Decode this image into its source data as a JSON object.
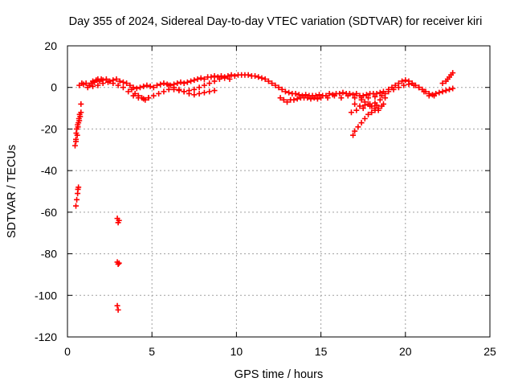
{
  "chart_data": {
    "type": "scatter",
    "title": "Day 355 of 2024, Sidereal Day-to-day VTEC variation (SDTVAR) for receiver kiri",
    "xlabel": "GPS time / hours",
    "ylabel": "SDTVAR / TECUs",
    "xlim": [
      0,
      25
    ],
    "ylim": [
      -120,
      20
    ],
    "xticks": [
      0,
      5,
      10,
      15,
      20,
      25
    ],
    "yticks": [
      -120,
      -100,
      -80,
      -60,
      -40,
      -20,
      0,
      20
    ],
    "grid": true,
    "marker": "+",
    "color": "#ff0000",
    "series": [
      {
        "points": [
          [
            0.45,
            -28
          ],
          [
            0.5,
            -25
          ],
          [
            0.52,
            -22
          ],
          [
            0.55,
            -20
          ],
          [
            0.6,
            -18
          ],
          [
            0.65,
            -17
          ],
          [
            0.7,
            -16
          ],
          [
            0.75,
            -14
          ],
          [
            0.8,
            -12
          ],
          [
            0.5,
            -26
          ],
          [
            0.58,
            -23
          ],
          [
            0.62,
            -19
          ],
          [
            0.68,
            -15
          ],
          [
            0.72,
            -13
          ],
          [
            0.5,
            -57
          ],
          [
            0.55,
            -54
          ],
          [
            0.6,
            -51
          ],
          [
            0.62,
            -49
          ],
          [
            0.65,
            -48
          ],
          [
            0.8,
            -8
          ],
          [
            0.7,
            1
          ],
          [
            0.85,
            2
          ],
          [
            0.95,
            1.5
          ],
          [
            1.1,
            2
          ],
          [
            1.3,
            1
          ],
          [
            1.4,
            2
          ],
          [
            1.5,
            3
          ],
          [
            1.6,
            2.5
          ],
          [
            1.7,
            3.5
          ],
          [
            1.8,
            4
          ],
          [
            1.9,
            3
          ],
          [
            2.0,
            4
          ],
          [
            2.1,
            3.5
          ],
          [
            2.3,
            4
          ],
          [
            2.5,
            3
          ],
          [
            2.7,
            3.5
          ],
          [
            2.9,
            4
          ],
          [
            3.1,
            3
          ],
          [
            3.3,
            2.5
          ],
          [
            3.5,
            2
          ],
          [
            3.7,
            1
          ],
          [
            3.9,
            0
          ],
          [
            4.1,
            -0.5
          ],
          [
            4.3,
            0
          ],
          [
            4.5,
            0.5
          ],
          [
            4.7,
            1
          ],
          [
            4.9,
            0.5
          ],
          [
            5.1,
            0
          ],
          [
            5.3,
            1
          ],
          [
            5.5,
            1.5
          ],
          [
            5.7,
            2
          ],
          [
            5.9,
            1.5
          ],
          [
            6.1,
            1
          ],
          [
            6.3,
            1.5
          ],
          [
            6.5,
            2
          ],
          [
            6.7,
            2.5
          ],
          [
            6.9,
            2
          ],
          [
            7.1,
            2.5
          ],
          [
            7.3,
            3
          ],
          [
            7.5,
            3.5
          ],
          [
            7.7,
            4
          ],
          [
            7.9,
            4.5
          ],
          [
            8.1,
            4
          ],
          [
            8.3,
            5
          ],
          [
            8.5,
            5
          ],
          [
            8.7,
            5.5
          ],
          [
            8.9,
            5
          ],
          [
            9.1,
            5.5
          ],
          [
            9.3,
            5
          ],
          [
            9.5,
            5.5
          ],
          [
            9.7,
            6
          ],
          [
            9.9,
            5.5
          ],
          [
            10.1,
            6
          ],
          [
            10.3,
            6
          ],
          [
            10.5,
            6
          ],
          [
            10.7,
            6
          ],
          [
            10.9,
            5.5
          ],
          [
            11.1,
            5.5
          ],
          [
            11.3,
            5
          ],
          [
            11.5,
            4.5
          ],
          [
            11.7,
            4
          ],
          [
            11.9,
            3
          ],
          [
            12.1,
            2
          ],
          [
            12.3,
            1
          ],
          [
            12.5,
            0
          ],
          [
            12.7,
            -1
          ],
          [
            12.9,
            -2
          ],
          [
            13.1,
            -2.5
          ],
          [
            13.3,
            -3
          ],
          [
            13.5,
            -3
          ],
          [
            13.7,
            -3.5
          ],
          [
            13.9,
            -4
          ],
          [
            14.1,
            -3.5
          ],
          [
            14.3,
            -4
          ],
          [
            14.5,
            -4
          ],
          [
            14.7,
            -4
          ],
          [
            14.9,
            -3.5
          ],
          [
            15.1,
            -4
          ],
          [
            15.3,
            -4
          ],
          [
            15.5,
            -3
          ],
          [
            15.7,
            -3.5
          ],
          [
            15.9,
            -3
          ],
          [
            16.1,
            -3
          ],
          [
            16.3,
            -2.5
          ],
          [
            16.5,
            -3
          ],
          [
            16.7,
            -3
          ],
          [
            16.9,
            -3.5
          ],
          [
            17.1,
            -3
          ],
          [
            17.3,
            -4
          ],
          [
            17.5,
            -4
          ],
          [
            17.7,
            -3.5
          ],
          [
            17.9,
            -3
          ],
          [
            18.1,
            -3
          ],
          [
            18.3,
            -3
          ],
          [
            18.5,
            -2.5
          ],
          [
            18.7,
            -2
          ],
          [
            1.2,
            0
          ],
          [
            1.5,
            0.5
          ],
          [
            1.8,
            1
          ],
          [
            2.1,
            2
          ],
          [
            2.4,
            2.5
          ],
          [
            2.7,
            2
          ],
          [
            3.0,
            1
          ],
          [
            3.3,
            0
          ],
          [
            3.6,
            -2
          ],
          [
            3.9,
            -4
          ],
          [
            4.2,
            -5
          ],
          [
            4.5,
            -5.5
          ],
          [
            4.8,
            -5
          ],
          [
            5.1,
            -4
          ],
          [
            5.4,
            -3
          ],
          [
            5.7,
            -2
          ],
          [
            6.0,
            -1
          ],
          [
            6.3,
            -1
          ],
          [
            6.6,
            -1.5
          ],
          [
            6.9,
            -2
          ],
          [
            7.2,
            -1.5
          ],
          [
            7.5,
            -1
          ],
          [
            7.8,
            0
          ],
          [
            8.1,
            1
          ],
          [
            8.4,
            2
          ],
          [
            8.7,
            3
          ],
          [
            9.0,
            4
          ],
          [
            9.3,
            4.5
          ],
          [
            9.6,
            4
          ],
          [
            3.8,
            -1
          ],
          [
            4.0,
            -3
          ],
          [
            4.2,
            -4
          ],
          [
            4.4,
            -5
          ],
          [
            4.6,
            -6
          ],
          [
            4.8,
            -5
          ],
          [
            6.0,
            1
          ],
          [
            6.3,
            0
          ],
          [
            6.6,
            -1
          ],
          [
            6.9,
            -2
          ],
          [
            7.2,
            -3
          ],
          [
            7.5,
            -3.5
          ],
          [
            7.8,
            -3
          ],
          [
            8.1,
            -2.5
          ],
          [
            8.4,
            -2
          ],
          [
            8.7,
            -1.5
          ],
          [
            12.6,
            -5
          ],
          [
            12.8,
            -6
          ],
          [
            13.0,
            -7
          ],
          [
            13.2,
            -6
          ],
          [
            13.4,
            -6
          ],
          [
            13.6,
            -5.5
          ],
          [
            13.8,
            -5
          ],
          [
            14.0,
            -5
          ],
          [
            14.2,
            -5
          ],
          [
            14.4,
            -5.5
          ],
          [
            14.6,
            -5
          ],
          [
            14.8,
            -5.5
          ],
          [
            15.0,
            -5
          ],
          [
            15.4,
            -5
          ],
          [
            15.8,
            -4
          ],
          [
            16.2,
            -5
          ],
          [
            16.6,
            -4
          ],
          [
            17.0,
            -5
          ],
          [
            17.4,
            -6
          ],
          [
            17.8,
            -5
          ],
          [
            18.2,
            -4.5
          ],
          [
            18.6,
            -4
          ],
          [
            17.0,
            -8
          ],
          [
            17.3,
            -9
          ],
          [
            17.6,
            -8.5
          ],
          [
            17.9,
            -8
          ],
          [
            18.2,
            -7.5
          ],
          [
            18.5,
            -6
          ],
          [
            18.8,
            -5
          ],
          [
            17.4,
            -5
          ],
          [
            17.6,
            -7
          ],
          [
            17.8,
            -8
          ],
          [
            18.0,
            -9
          ],
          [
            18.2,
            -10
          ],
          [
            18.4,
            -11
          ],
          [
            16.9,
            -23
          ],
          [
            17.0,
            -21
          ],
          [
            17.2,
            -19
          ],
          [
            17.4,
            -17
          ],
          [
            17.6,
            -15
          ],
          [
            17.8,
            -13
          ],
          [
            18.0,
            -12
          ],
          [
            18.2,
            -11
          ],
          [
            18.4,
            -10
          ],
          [
            18.6,
            -9
          ],
          [
            16.8,
            -12
          ],
          [
            17.1,
            -11
          ],
          [
            17.5,
            -10
          ],
          [
            17.9,
            -9
          ],
          [
            18.3,
            -8.5
          ],
          [
            18.7,
            -8
          ],
          [
            18.8,
            -3
          ],
          [
            19.0,
            -1
          ],
          [
            19.2,
            0
          ],
          [
            19.4,
            1
          ],
          [
            19.6,
            2
          ],
          [
            19.8,
            3
          ],
          [
            20.0,
            3.5
          ],
          [
            20.2,
            3
          ],
          [
            20.4,
            2
          ],
          [
            20.6,
            1
          ],
          [
            20.8,
            0
          ],
          [
            21.0,
            -1
          ],
          [
            21.2,
            -2
          ],
          [
            21.4,
            -3
          ],
          [
            21.6,
            -3.5
          ],
          [
            21.8,
            -3
          ],
          [
            22.0,
            -2.5
          ],
          [
            22.2,
            -2
          ],
          [
            22.4,
            -1.5
          ],
          [
            22.6,
            -1
          ],
          [
            22.8,
            -0.5
          ],
          [
            19.0,
            -2
          ],
          [
            19.3,
            -1
          ],
          [
            19.6,
            0
          ],
          [
            19.9,
            1
          ],
          [
            20.2,
            1.5
          ],
          [
            20.5,
            1
          ],
          [
            20.8,
            0
          ],
          [
            21.1,
            -2
          ],
          [
            21.4,
            -4
          ],
          [
            21.7,
            -4
          ],
          [
            22.2,
            2
          ],
          [
            22.4,
            3
          ],
          [
            22.6,
            5
          ],
          [
            22.8,
            7
          ],
          [
            22.5,
            4
          ],
          [
            22.7,
            6
          ],
          [
            2.95,
            -63
          ],
          [
            3.0,
            -65
          ],
          [
            2.95,
            -84
          ],
          [
            3.0,
            -85
          ],
          [
            2.95,
            -105
          ],
          [
            3.0,
            -107
          ],
          [
            3.05,
            -64
          ],
          [
            3.05,
            -84.5
          ]
        ]
      }
    ]
  }
}
